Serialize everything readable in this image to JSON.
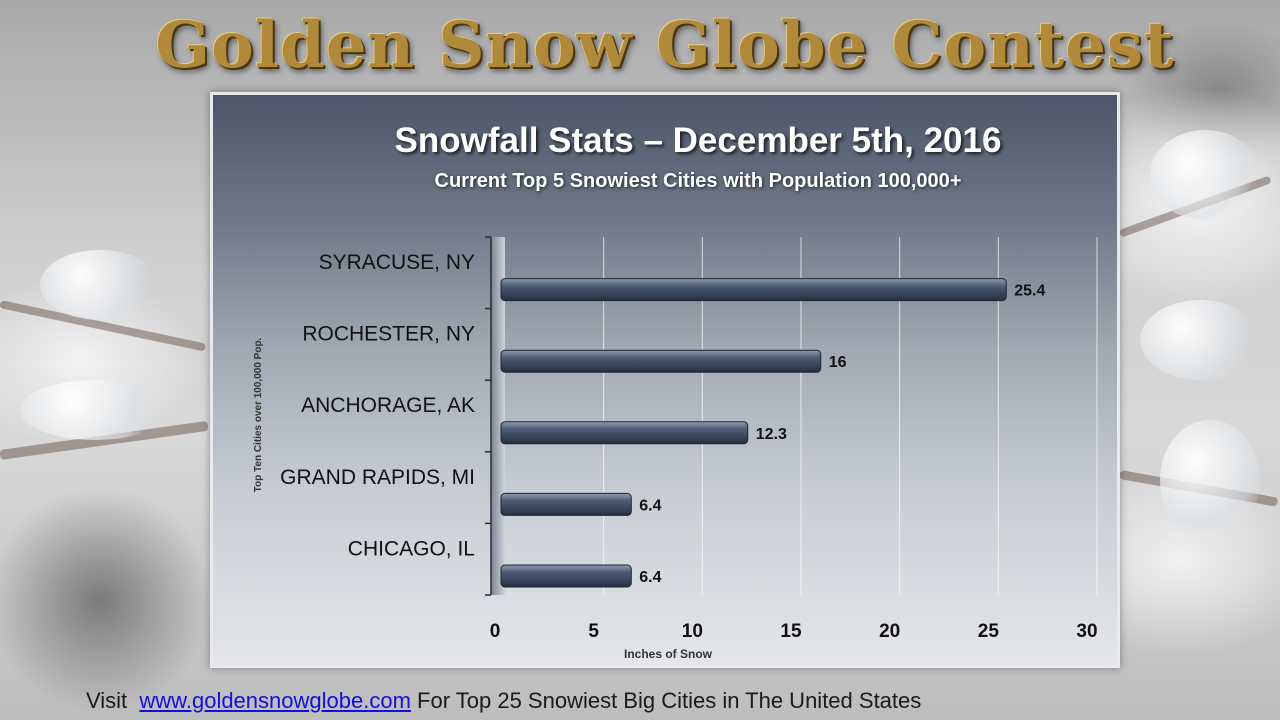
{
  "header": {
    "title": "Golden Snow Globe Contest"
  },
  "footer": {
    "prefix": "Visit",
    "link_text": "www.goldensnowglobe.com",
    "suffix": "For Top 25 Snowiest Big Cities in The United States"
  },
  "colors": {
    "bar": "#3e4a5c",
    "title_gold": "#b0893a",
    "link": "#1010e0"
  },
  "chart_data": {
    "type": "bar",
    "orientation": "horizontal",
    "title": "Snowfall Stats – December 5th, 2016",
    "subtitle": "Current Top 5 Snowiest Cities with Population 100,000+",
    "xlabel": "Inches of Snow",
    "ylabel": "Top Ten Cities over 100,000 Pop.",
    "categories": [
      "SYRACUSE, NY",
      "ROCHESTER, NY",
      "ANCHORAGE, AK",
      "GRAND RAPIDS, MI",
      "CHICAGO, IL"
    ],
    "values": [
      25.4,
      16,
      12.3,
      6.4,
      6.4
    ],
    "data_labels": [
      "25.4",
      "16",
      "12.3",
      "6.4",
      "6.4"
    ],
    "xlim": [
      0,
      30
    ],
    "xticks": [
      0,
      5,
      10,
      15,
      20,
      25,
      30
    ],
    "grid": true,
    "legend": "none"
  }
}
